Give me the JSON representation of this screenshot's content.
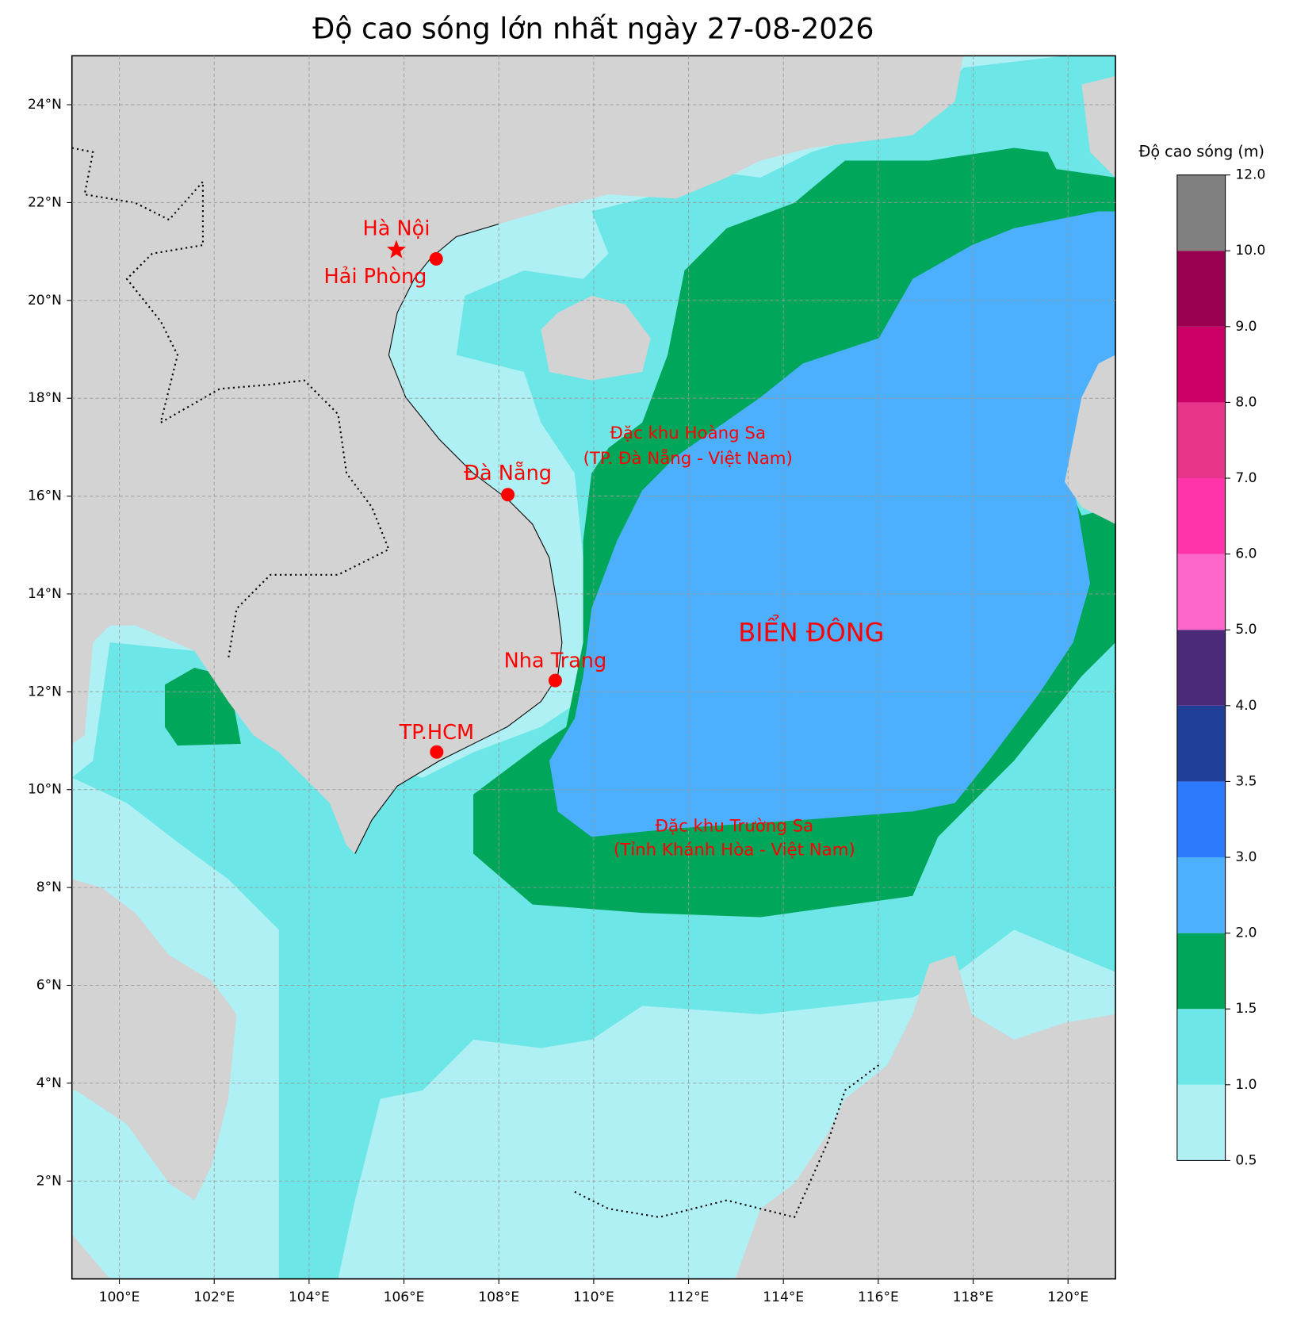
{
  "map": {
    "title": "Độ cao sóng lớn nhất ngày 27-08-2026",
    "xlim": [
      99,
      121
    ],
    "ylim": [
      0,
      25
    ],
    "xticks": [
      {
        "value": 100,
        "label": "100°E"
      },
      {
        "value": 102,
        "label": "102°E"
      },
      {
        "value": 104,
        "label": "104°E"
      },
      {
        "value": 106,
        "label": "106°E"
      },
      {
        "value": 108,
        "label": "108°E"
      },
      {
        "value": 110,
        "label": "110°E"
      },
      {
        "value": 112,
        "label": "112°E"
      },
      {
        "value": 114,
        "label": "114°E"
      },
      {
        "value": 116,
        "label": "116°E"
      },
      {
        "value": 118,
        "label": "118°E"
      },
      {
        "value": 120,
        "label": "120°E"
      }
    ],
    "yticks": [
      {
        "value": 2,
        "label": "2°N"
      },
      {
        "value": 4,
        "label": "4°N"
      },
      {
        "value": 6,
        "label": "6°N"
      },
      {
        "value": 8,
        "label": "8°N"
      },
      {
        "value": 10,
        "label": "10°N"
      },
      {
        "value": 12,
        "label": "12°N"
      },
      {
        "value": 14,
        "label": "14°N"
      },
      {
        "value": 16,
        "label": "16°N"
      },
      {
        "value": 18,
        "label": "18°N"
      },
      {
        "value": 20,
        "label": "20°N"
      },
      {
        "value": 22,
        "label": "22°N"
      },
      {
        "value": 24,
        "label": "24°N"
      }
    ],
    "grid": true,
    "cities": [
      {
        "name": "Hà Nội",
        "lon": 105.84,
        "lat": 21.03,
        "marker": "star"
      },
      {
        "name": "Hải Phòng",
        "lon": 106.68,
        "lat": 20.85,
        "marker": "circle"
      },
      {
        "name": "Đà Nẵng",
        "lon": 108.19,
        "lat": 16.03,
        "marker": "circle"
      },
      {
        "name": "Nha Trang",
        "lon": 109.19,
        "lat": 12.23,
        "marker": "circle"
      },
      {
        "name": "TP.HCM",
        "lon": 106.69,
        "lat": 10.77,
        "marker": "circle"
      }
    ],
    "city_color": "#ff0000",
    "annotations": [
      "Đặc khu Hoàng Sa",
      "(TP. Đà Nẵng - Việt Nam)",
      "BIỂN ĐÔNG",
      "Đặc khu Trường Sa",
      "(Tỉnh Khánh Hòa - Việt Nam)"
    ],
    "colorbar": {
      "label": "Độ cao sóng (m)",
      "levels": [
        0.5,
        {
          "value": 1,
          "label": "1.0"
        },
        1.5,
        {
          "value": 2,
          "label": "2.0"
        },
        {
          "value": 3,
          "label": "3.0"
        },
        3.5,
        {
          "value": 4,
          "label": "4.0"
        },
        {
          "value": 5,
          "label": "5.0"
        },
        {
          "value": 6,
          "label": "6.0"
        },
        {
          "value": 7,
          "label": "7.0"
        },
        {
          "value": 8,
          "label": "8.0"
        },
        {
          "value": 9,
          "label": "9.0"
        },
        {
          "value": 10,
          "label": "10.0"
        },
        {
          "value": 12,
          "label": "12.0"
        }
      ],
      "colors": [
        "#aff0f5",
        "#6ce6e6",
        "#00a65a",
        "#4db0ff",
        "#2c7bff",
        "#1f3f99",
        "#4b2a7a",
        "#ff66cc",
        "#ff33aa",
        "#e8338a",
        "#cc0066",
        "#990050",
        "#808080"
      ]
    }
  }
}
